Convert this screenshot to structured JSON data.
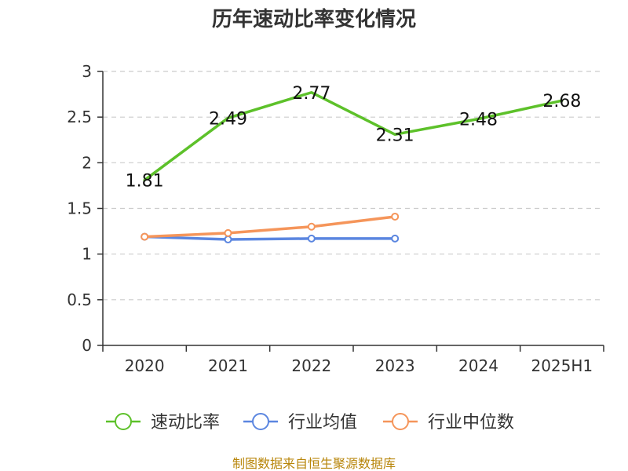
{
  "chart_data": {
    "type": "line",
    "title": "历年速动比率变化情况",
    "categories": [
      "2020",
      "2021",
      "2022",
      "2023",
      "2024",
      "2025H1"
    ],
    "ylim": [
      0,
      3
    ],
    "yticks": [
      "0",
      "0.5",
      "1",
      "1.5",
      "2",
      "2.5",
      "3"
    ],
    "grid": true,
    "legend_position": "bottom",
    "series": [
      {
        "name": "速动比率",
        "color": "#5dc12a",
        "values": [
          1.81,
          2.49,
          2.77,
          2.31,
          2.48,
          2.68
        ],
        "labels": [
          "1.81",
          "2.49",
          "2.77",
          "2.31",
          "2.48",
          "2.68"
        ]
      },
      {
        "name": "行业均值",
        "color": "#5b86e0",
        "values": [
          1.19,
          1.16,
          1.17,
          1.17,
          null,
          null
        ]
      },
      {
        "name": "行业中位数",
        "color": "#f5955a",
        "values": [
          1.19,
          1.23,
          1.3,
          1.41,
          null,
          null
        ]
      }
    ],
    "source": "制图数据来自恒生聚源数据库"
  }
}
